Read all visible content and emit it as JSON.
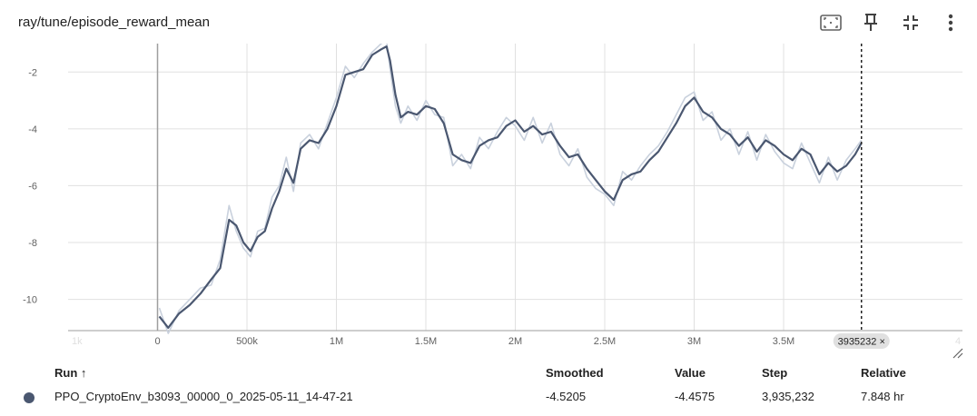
{
  "header": {
    "title": "ray/tune/episode_reward_mean",
    "icons": [
      "fit-domain-icon",
      "pin-icon",
      "collapse-icon",
      "more-vert-icon"
    ]
  },
  "colors": {
    "series": "#4a5770",
    "raw": "#c9d1dd",
    "grid": "#e0e0e0",
    "axis": "#9e9e9e",
    "hover_line": "#212121",
    "chip_bg": "#e0e0e0"
  },
  "chart_data": {
    "type": "line",
    "title": "ray/tune/episode_reward_mean",
    "xlabel": "",
    "ylabel": "",
    "xlim": [
      -500000,
      4500000
    ],
    "ylim": [
      -11.1,
      -1.0
    ],
    "x_ticks": [
      0,
      500000,
      1000000,
      1500000,
      2000000,
      2500000,
      3000000,
      3500000
    ],
    "x_tick_labels": [
      "0",
      "500k",
      "1M",
      "1.5M",
      "2M",
      "2.5M",
      "3M",
      "3.5M"
    ],
    "x_edge_labels": [
      "1k",
      "4"
    ],
    "y_ticks": [
      -10,
      -8,
      -6,
      -4,
      -2
    ],
    "y_tick_labels": [
      "-10",
      "-8",
      "-6",
      "-4",
      "-2"
    ],
    "grid": true,
    "hover": {
      "step": 3935232,
      "label": "3935232 ×"
    },
    "series": [
      {
        "name": "PPO_CryptoEnv_b3093_00000_0_2025-05-11_14-47-21",
        "x": [
          10000,
          60000,
          120000,
          180000,
          240000,
          300000,
          350000,
          400000,
          440000,
          480000,
          520000,
          560000,
          600000,
          640000,
          680000,
          720000,
          760000,
          800000,
          850000,
          900000,
          950000,
          1000000,
          1050000,
          1100000,
          1150000,
          1200000,
          1250000,
          1280000,
          1300000,
          1330000,
          1360000,
          1400000,
          1450000,
          1500000,
          1550000,
          1600000,
          1650000,
          1700000,
          1750000,
          1800000,
          1850000,
          1900000,
          1950000,
          2000000,
          2050000,
          2100000,
          2150000,
          2200000,
          2250000,
          2300000,
          2350000,
          2400000,
          2450000,
          2500000,
          2550000,
          2600000,
          2650000,
          2700000,
          2750000,
          2800000,
          2850000,
          2900000,
          2950000,
          3000000,
          3050000,
          3100000,
          3150000,
          3200000,
          3250000,
          3300000,
          3350000,
          3400000,
          3450000,
          3500000,
          3550000,
          3600000,
          3650000,
          3700000,
          3750000,
          3800000,
          3850000,
          3900000,
          3935232
        ],
        "smoothed": [
          -10.6,
          -11.0,
          -10.5,
          -10.2,
          -9.8,
          -9.3,
          -8.9,
          -7.2,
          -7.4,
          -8.0,
          -8.3,
          -7.8,
          -7.6,
          -6.8,
          -6.2,
          -5.4,
          -5.9,
          -4.7,
          -4.4,
          -4.5,
          -4.0,
          -3.2,
          -2.1,
          -2.0,
          -1.9,
          -1.4,
          -1.2,
          -1.1,
          -1.6,
          -2.8,
          -3.6,
          -3.4,
          -3.5,
          -3.2,
          -3.3,
          -3.8,
          -4.9,
          -5.1,
          -5.2,
          -4.6,
          -4.4,
          -4.3,
          -3.9,
          -3.7,
          -4.1,
          -3.9,
          -4.2,
          -4.1,
          -4.6,
          -5.0,
          -4.9,
          -5.4,
          -5.8,
          -6.2,
          -6.5,
          -5.8,
          -5.6,
          -5.5,
          -5.1,
          -4.8,
          -4.3,
          -3.8,
          -3.2,
          -2.9,
          -3.4,
          -3.6,
          -4.0,
          -4.2,
          -4.6,
          -4.3,
          -4.8,
          -4.4,
          -4.6,
          -4.9,
          -5.1,
          -4.7,
          -4.9,
          -5.6,
          -5.2,
          -5.5,
          -5.3,
          -4.9,
          -4.5
        ],
        "raw": [
          -10.3,
          -11.2,
          -10.4,
          -10.0,
          -9.6,
          -9.5,
          -8.6,
          -6.7,
          -7.6,
          -8.2,
          -8.5,
          -7.6,
          -7.5,
          -6.4,
          -6.0,
          -5.0,
          -6.2,
          -4.5,
          -4.2,
          -4.7,
          -3.8,
          -2.9,
          -1.8,
          -2.2,
          -1.7,
          -1.3,
          -1.0,
          -0.9,
          -1.9,
          -3.2,
          -3.8,
          -3.2,
          -3.7,
          -3.0,
          -3.5,
          -3.6,
          -5.3,
          -4.9,
          -5.4,
          -4.3,
          -4.7,
          -4.1,
          -3.6,
          -3.9,
          -4.4,
          -3.6,
          -4.5,
          -3.8,
          -4.9,
          -5.3,
          -4.7,
          -5.7,
          -6.1,
          -6.3,
          -6.7,
          -5.5,
          -5.8,
          -5.3,
          -4.9,
          -4.6,
          -4.1,
          -3.5,
          -2.9,
          -2.7,
          -3.7,
          -3.4,
          -4.4,
          -4.0,
          -4.9,
          -4.1,
          -5.1,
          -4.2,
          -4.8,
          -5.2,
          -5.4,
          -4.5,
          -5.2,
          -5.9,
          -5.0,
          -5.8,
          -5.1,
          -4.7,
          -4.4
        ]
      }
    ]
  },
  "table": {
    "columns": {
      "run": "Run ↑",
      "smoothed": "Smoothed",
      "value": "Value",
      "step": "Step",
      "relative": "Relative"
    },
    "rows": [
      {
        "color": "#4a5770",
        "run": "PPO_CryptoEnv_b3093_00000_0_2025-05-11_14-47-21",
        "smoothed": "-4.5205",
        "value": "-4.4575",
        "step": "3,935,232",
        "relative": "7.848 hr"
      }
    ]
  }
}
